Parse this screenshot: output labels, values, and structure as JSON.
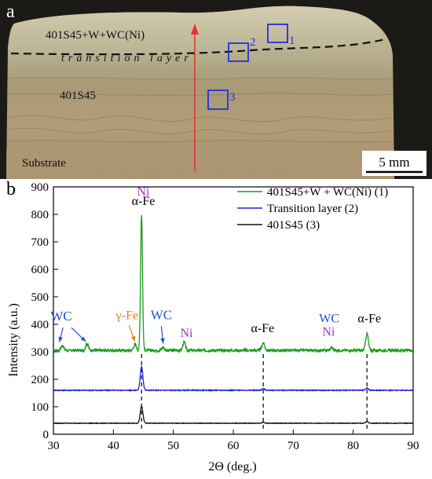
{
  "panel_a": {
    "label": "a",
    "region_top": "401S45+W+WC(Ni)",
    "region_transition": "transition layer",
    "region_middle": "401S45",
    "region_bottom": "Substrate",
    "box_labels": [
      "1",
      "2",
      "3"
    ],
    "scale_bar": "5 mm"
  },
  "chart_data": {
    "panel_label": "b",
    "type": "line",
    "xlabel": "2Θ (deg.)",
    "ylabel": "Intensity (a.u.)",
    "xlim": [
      30,
      90
    ],
    "ylim": [
      0,
      900
    ],
    "xticks": [
      30,
      40,
      50,
      60,
      70,
      80,
      90
    ],
    "yticks": [
      0,
      100,
      200,
      300,
      400,
      500,
      600,
      700,
      800,
      900
    ],
    "grid": false,
    "legend_position": "top-right",
    "series": [
      {
        "name": "401S45+W + WC(Ni) (1)",
        "color": "#1a9a1a",
        "baseline": 305,
        "noise": 5,
        "peaks": [
          [
            31.5,
            18
          ],
          [
            35.6,
            25
          ],
          [
            43.6,
            22
          ],
          [
            44.7,
            495
          ],
          [
            48.3,
            12
          ],
          [
            51.8,
            30
          ],
          [
            65.0,
            28
          ],
          [
            76.4,
            10
          ],
          [
            82.3,
            62
          ]
        ]
      },
      {
        "name": "Transition layer (2)",
        "color": "#2020dd",
        "baseline": 160,
        "noise": 1.5,
        "peaks": [
          [
            44.7,
            85
          ],
          [
            65.0,
            6
          ],
          [
            82.3,
            8
          ]
        ]
      },
      {
        "name": "401S45 (3)",
        "color": "#111111",
        "baseline": 40,
        "noise": 1,
        "peaks": [
          [
            44.7,
            62
          ],
          [
            65.0,
            4
          ],
          [
            82.3,
            6
          ]
        ]
      }
    ],
    "reference_lines_x": [
      44.7,
      65.0,
      82.3
    ],
    "annotations": [
      {
        "text": "Ni",
        "color": "#a030c8"
      },
      {
        "text": "α-Fe",
        "color": "#000000"
      },
      {
        "text": "WC",
        "color": "#2050d0"
      },
      {
        "text": "γ-Fe",
        "color": "#e87a20"
      },
      {
        "text": "WC",
        "color": "#2050d0"
      },
      {
        "text": "Ni",
        "color": "#a030c8"
      },
      {
        "text": "α-Fe",
        "color": "#000000"
      },
      {
        "text": "WC",
        "color": "#2050d0"
      },
      {
        "text": "Ni",
        "color": "#a030c8"
      },
      {
        "text": "α-Fe",
        "color": "#000000"
      }
    ]
  }
}
